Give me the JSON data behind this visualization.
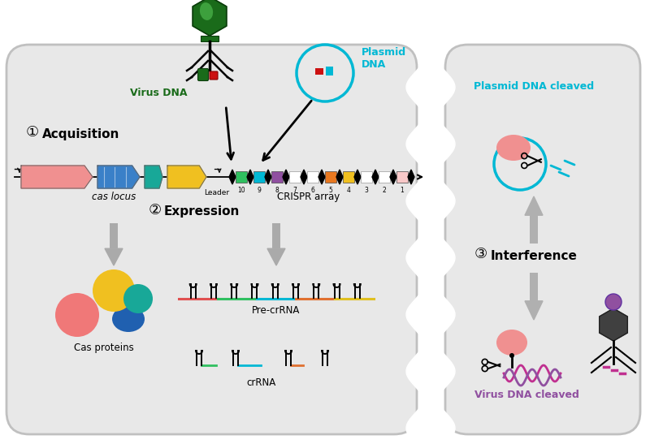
{
  "bg_color": "#f0f0f0",
  "cell_fill": "#e8e8e8",
  "cell_stroke": "#c8c8c8",
  "labels": {
    "virus_dna": "Virus DNA",
    "plasmid_dna": "Plasmid\nDNA",
    "acquisition": "Acquisition",
    "cas_locus": "cas locus",
    "crispr_array": "CRISPR array",
    "leader": "Leader",
    "expression": "Expression",
    "cas_proteins": "Cas proteins",
    "pre_crRNA": "Pre-crRNA",
    "crRNA": "crRNA",
    "plasmid_cleaved": "Plasmid DNA cleaved",
    "interference": "Interference",
    "virus_cleaved": "Virus DNA cleaved"
  },
  "colors": {
    "green_dark": "#1a6b1a",
    "green_light": "#4db84d",
    "cyan": "#00b8d4",
    "red_pink": "#f07070",
    "blue_med": "#3a80c8",
    "teal": "#18a898",
    "yellow": "#f0c020",
    "orange": "#e87820",
    "purple": "#9050a0",
    "magenta": "#c03090",
    "gray": "#aaaaaa",
    "gray_dark": "#888888"
  },
  "spacer_colors": [
    "#30c060",
    "#00b8d4",
    "#9050a0",
    "#e0e0e0",
    "#e0e0e0",
    "#e87820",
    "#f0c020",
    "#e0e0e0",
    "#e0e0e0",
    "#f8c8c8"
  ],
  "spacer_nums": [
    10,
    9,
    8,
    7,
    6,
    5,
    4,
    3,
    2,
    1
  ]
}
